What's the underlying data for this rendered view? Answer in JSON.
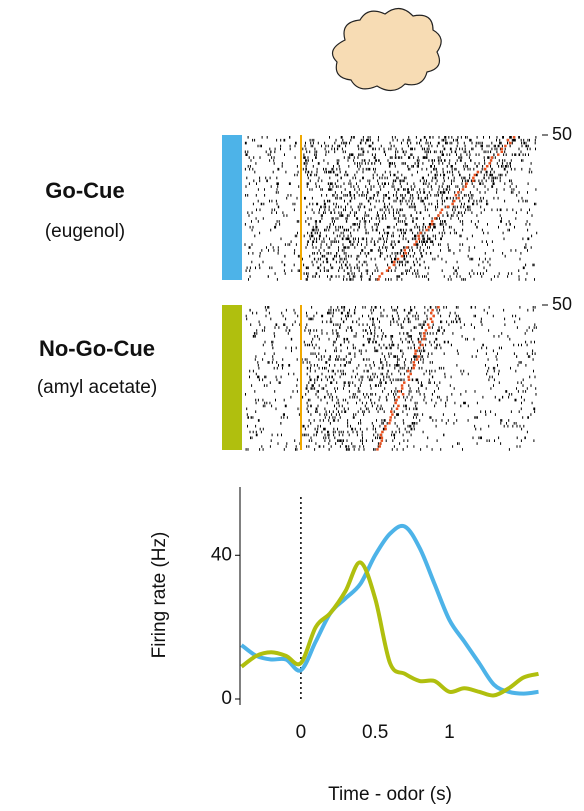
{
  "chart_data": [
    {
      "type": "raster",
      "title": "Go-Cue",
      "subtitle": "(eugenol)",
      "color": "#4db3e8",
      "ylim": [
        0,
        50
      ],
      "yticks": [
        50
      ]
    },
    {
      "type": "raster",
      "title": "No-Go-Cue",
      "subtitle": "(amyl acetate)",
      "color": "#b0bf0e",
      "ylim": [
        0,
        50
      ],
      "yticks": [
        50
      ]
    },
    {
      "type": "line",
      "xlabel": "Time - odor (s)",
      "ylabel": "Firing rate (Hz)",
      "x": [
        -0.4,
        -0.3,
        -0.2,
        -0.1,
        0,
        0.1,
        0.2,
        0.3,
        0.4,
        0.5,
        0.6,
        0.7,
        0.8,
        0.9,
        1.0,
        1.1,
        1.2,
        1.3,
        1.4,
        1.5,
        1.6
      ],
      "series": [
        {
          "name": "Go-Cue",
          "color": "#4db3e8",
          "values": [
            15,
            12,
            11,
            11,
            8,
            16,
            24,
            28,
            32,
            40,
            46,
            48,
            42,
            32,
            22,
            16,
            10,
            4,
            2,
            1.5,
            2
          ]
        },
        {
          "name": "No-Go-Cue",
          "color": "#b0bf0e",
          "values": [
            9,
            12,
            13,
            12,
            10,
            20,
            24,
            30,
            38,
            28,
            10,
            7,
            5,
            5,
            2,
            3,
            2,
            1,
            3,
            6,
            7
          ]
        }
      ],
      "xlim": [
        -0.41,
        1.61
      ],
      "ylim": [
        0,
        59
      ],
      "xticks": [
        0,
        0.5,
        1
      ],
      "yticks": [
        0,
        40
      ],
      "vline": 0
    }
  ]
}
